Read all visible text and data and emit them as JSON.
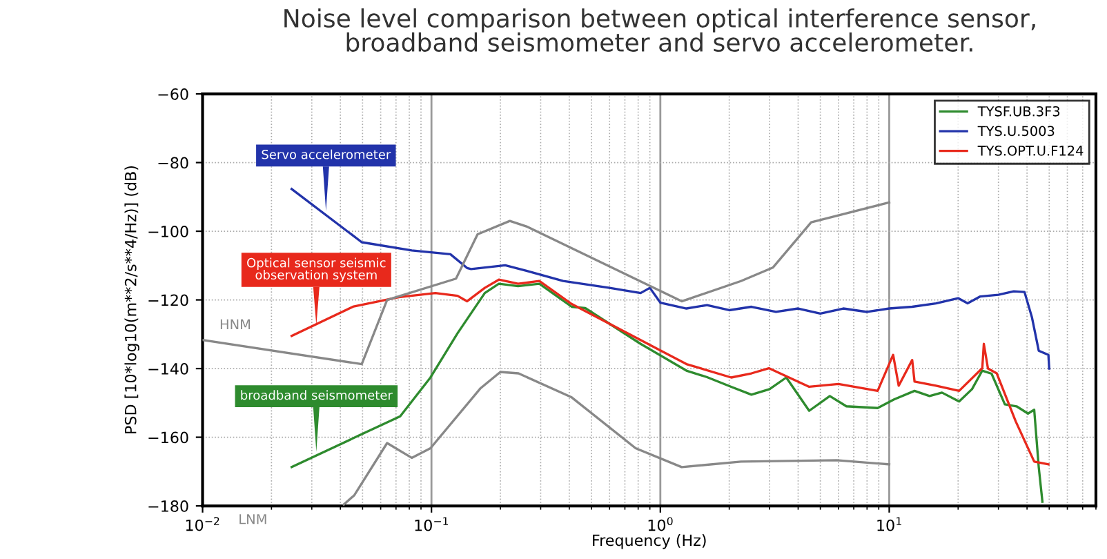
{
  "chart_data": {
    "type": "line",
    "title": "Noise level comparison between optical interference sensor,\nbroadband seismometer and servo accelerometer.",
    "xlabel": "Frequency (Hz)",
    "ylabel": "PSD [10*log10(m**2/s**4/Hz)] (dB)",
    "log": "x",
    "xlim": [
      0.01,
      80
    ],
    "ylim": [
      -180,
      -60
    ],
    "xticks": [
      {
        "value": 0.01,
        "label": "10$^{−2}$"
      },
      {
        "value": 0.1,
        "label": "10$^{−1}$"
      },
      {
        "value": 1,
        "label": "10$^{0}$"
      },
      {
        "value": 10,
        "label": "10$^{1}$"
      }
    ],
    "yticks": [
      -180,
      -160,
      -140,
      -120,
      -100,
      -80,
      -60
    ],
    "grid": true,
    "legend": "top right",
    "line_style": "solid",
    "marker": "none",
    "series": [
      {
        "name": "TYSF.UB.3F3",
        "color": "#2e8b2e",
        "x": [
          0.0245,
          0.0475,
          0.073,
          0.099,
          0.13,
          0.171,
          0.197,
          0.239,
          0.296,
          0.41,
          0.47,
          0.82,
          1.3,
          1.6,
          2.04,
          2.5,
          3.0,
          3.55,
          4.47,
          5.5,
          6.5,
          8.9,
          10.5,
          12.9,
          15,
          17,
          20.2,
          23,
          25.5,
          28,
          32,
          36,
          40.4,
          43,
          45,
          46.7
        ],
        "values": [
          -168.7,
          -159.7,
          -153.9,
          -142.6,
          -129.7,
          -118,
          -115.3,
          -116,
          -115.3,
          -122,
          -122.4,
          -132.8,
          -140.6,
          -142.5,
          -145.3,
          -147.6,
          -146,
          -142.6,
          -152.3,
          -148,
          -151,
          -151.5,
          -149,
          -146.5,
          -148,
          -147,
          -149.6,
          -146,
          -140.6,
          -141.5,
          -150.4,
          -151,
          -153.1,
          -152,
          -168.7,
          -178.8
        ]
      },
      {
        "name": "TYS.U.5003",
        "color": "#2233aa",
        "x": [
          0.0245,
          0.0496,
          0.082,
          0.121,
          0.143,
          0.149,
          0.21,
          0.26,
          0.376,
          0.6,
          0.82,
          0.9,
          1.0,
          1.3,
          1.6,
          2.0,
          2.5,
          3.2,
          4,
          5,
          6.3,
          8,
          10,
          12.6,
          16,
          20,
          22,
          25,
          30,
          35,
          39,
          42,
          45,
          49.6,
          50
        ],
        "values": [
          -87.7,
          -103.2,
          -105.6,
          -106.7,
          -110.7,
          -111,
          -109.9,
          -111.5,
          -114.5,
          -116.5,
          -118,
          -116.5,
          -120.8,
          -122.5,
          -121.5,
          -123,
          -122,
          -123.5,
          -122.5,
          -124,
          -122.5,
          -123.5,
          -122.5,
          -122,
          -121,
          -119.5,
          -121,
          -119,
          -118.5,
          -117.5,
          -117.7,
          -125,
          -134.8,
          -136,
          -140
        ]
      },
      {
        "name": "TYS.OPT.U.F124",
        "color": "#e8291c",
        "x": [
          0.0245,
          0.0457,
          0.072,
          0.104,
          0.13,
          0.143,
          0.171,
          0.197,
          0.239,
          0.296,
          0.41,
          0.82,
          1.3,
          2.04,
          2.5,
          2.98,
          4.47,
          6.0,
          8.9,
          10.4,
          11,
          12.6,
          12.9,
          16,
          20.2,
          25.5,
          25.9,
          27,
          29.5,
          35.7,
          43,
          49.6
        ],
        "values": [
          -130.5,
          -121.9,
          -119.2,
          -118,
          -118.8,
          -120.4,
          -116.5,
          -114.1,
          -115.3,
          -114.5,
          -121.2,
          -131.7,
          -138.7,
          -142.6,
          -141.4,
          -139.9,
          -145.3,
          -144.5,
          -146.5,
          -136,
          -145,
          -137.5,
          -143.8,
          -145,
          -146.5,
          -139.9,
          -132.8,
          -140,
          -141.4,
          -155.4,
          -167.1,
          -167.9
        ]
      },
      {
        "color": "#888888",
        "x": [
          0.01,
          0.0496,
          0.064,
          0.128,
          0.159,
          0.22,
          0.26,
          1.24,
          2.25,
          3.1,
          4.56,
          10
        ],
        "values": [
          -131.7,
          -138.7,
          -120,
          -113.8,
          -100.9,
          -97,
          -98.6,
          -120.4,
          -114.5,
          -110.6,
          -97.4,
          -91.6
        ]
      },
      {
        "color": "#888888",
        "x": [
          0.0414,
          0.046,
          0.064,
          0.082,
          0.099,
          0.164,
          0.2,
          0.24,
          0.41,
          0.78,
          1.24,
          2.25,
          5.9,
          10
        ],
        "values": [
          -179.6,
          -176.9,
          -161.7,
          -166,
          -163.2,
          -145.7,
          -141,
          -141.4,
          -148.4,
          -163.2,
          -168.7,
          -167.1,
          -166.7,
          -167.9
        ]
      }
    ],
    "annotations": [
      {
        "text": "Servo accelerometer",
        "x": 0.0346,
        "y": -94.7
      },
      {
        "text": "Optical sensor seismic\nobservation system",
        "x": 0.0314,
        "y": -128
      },
      {
        "text": "broadband seismometer",
        "x": 0.0314,
        "y": -164.8
      },
      {
        "text": "HNM",
        "x": 0.0139,
        "y": -132.7
      },
      "LNM"
    ]
  }
}
